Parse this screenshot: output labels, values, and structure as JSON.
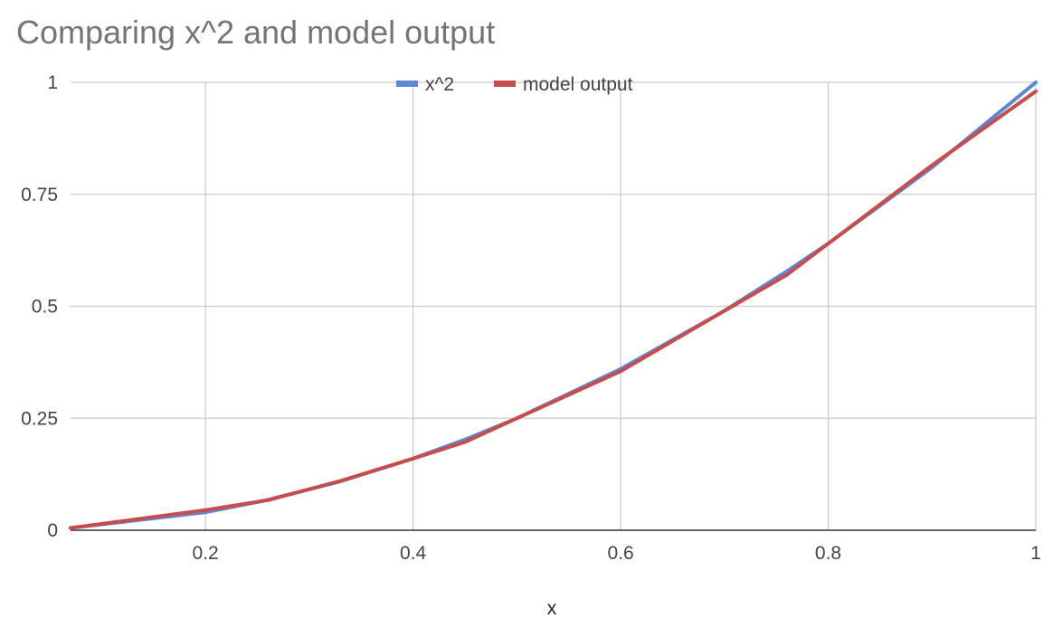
{
  "chart_data": {
    "type": "line",
    "title": "Comparing x^2 and model output",
    "xlabel": "x",
    "ylabel": "",
    "xlim": [
      0.07,
      1.0
    ],
    "ylim": [
      0,
      1
    ],
    "x_ticks": [
      0.2,
      0.4,
      0.6,
      0.8,
      1
    ],
    "y_ticks": [
      0,
      0.25,
      0.5,
      0.75,
      1
    ],
    "x_tick_labels": [
      "0.2",
      "0.4",
      "0.6",
      "0.8",
      "1"
    ],
    "y_tick_labels": [
      "0",
      "0.25",
      "0.5",
      "0.75",
      "1"
    ],
    "grid": true,
    "legend_position": "top-center",
    "series": [
      {
        "name": "x^2",
        "color": "#5b87d6",
        "x": [
          0.07,
          0.2,
          0.26,
          0.33,
          0.4,
          0.45,
          0.5,
          0.6,
          0.7,
          0.76,
          0.8,
          0.9,
          1.0
        ],
        "y": [
          0.005,
          0.04,
          0.0676,
          0.109,
          0.16,
          0.2025,
          0.25,
          0.36,
          0.49,
          0.578,
          0.64,
          0.81,
          1.0
        ]
      },
      {
        "name": "model output",
        "color": "#c94c4c",
        "x": [
          0.07,
          0.2,
          0.26,
          0.33,
          0.4,
          0.45,
          0.5,
          0.6,
          0.7,
          0.76,
          0.8,
          0.9,
          1.0
        ],
        "y": [
          0.005,
          0.045,
          0.067,
          0.11,
          0.16,
          0.197,
          0.25,
          0.355,
          0.49,
          0.57,
          0.64,
          0.815,
          0.98
        ]
      }
    ]
  }
}
